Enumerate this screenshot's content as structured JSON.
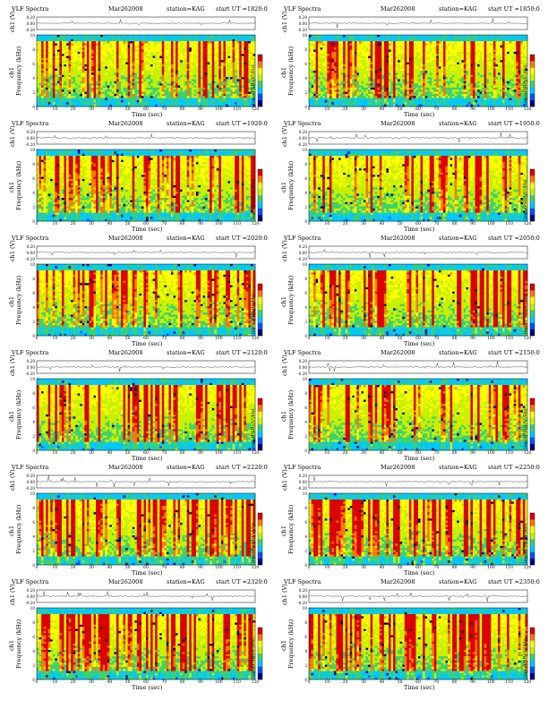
{
  "page": {
    "title_prefix": "VLF Spectra",
    "date": "Mar262008",
    "station": "station=KAG",
    "start_label": "start UT",
    "ch_label": "ch1 (V)",
    "ch_ticks": [
      "0.20",
      "0.00",
      "-0.20"
    ],
    "spec_ylabel": "Frequency (kHz)",
    "spec_ylabel2": "ch1",
    "xlabel": "Time (sec)",
    "cbar_label": "log₁₀(PSD)(V²/Hz)"
  },
  "chart_data": [
    {
      "type": "heatmap",
      "title": "VLF Spectra   Mar262008   station=KAG   start UT =1820:0",
      "ut": "=1820:0",
      "xlabel": "Time (sec)",
      "ylabel": "Frequency (kHz)",
      "xlim": [
        0,
        120
      ],
      "ylim": [
        0,
        10
      ],
      "xticks": [
        "0",
        "10",
        "20",
        "30",
        "40",
        "50",
        "60",
        "70",
        "80",
        "90",
        "100",
        "110",
        "120"
      ],
      "yticks": [
        "0",
        "2",
        "4",
        "6",
        "8",
        "10"
      ],
      "activity": 0.35,
      "seed": 11,
      "colors": [
        "#000080",
        "#0050ff",
        "#00c8ff",
        "#3cd26e",
        "#c8f000",
        "#ffff00",
        "#ff7800",
        "#dc0000"
      ]
    },
    {
      "type": "heatmap",
      "title": "VLF Spectra   Mar262008   station=KAG   start UT =1850:0",
      "ut": "=1850:0",
      "xlabel": "Time (sec)",
      "ylabel": "Frequency (kHz)",
      "xlim": [
        0,
        120
      ],
      "ylim": [
        0,
        10
      ],
      "xticks": [
        "0",
        "10",
        "20",
        "30",
        "40",
        "50",
        "60",
        "70",
        "80",
        "90",
        "100",
        "110",
        "120"
      ],
      "yticks": [
        "0",
        "2",
        "4",
        "6",
        "8",
        "10"
      ],
      "activity": 0.35,
      "seed": 23,
      "colors": [
        "#000080",
        "#0050ff",
        "#00c8ff",
        "#3cd26e",
        "#c8f000",
        "#ffff00",
        "#ff7800",
        "#dc0000"
      ]
    },
    {
      "type": "heatmap",
      "title": "VLF Spectra   Mar262008   station=KAG   start UT =1920:0",
      "ut": "=1920:0",
      "xlabel": "Time (sec)",
      "ylabel": "Frequency (kHz)",
      "xlim": [
        0,
        120
      ],
      "ylim": [
        0,
        10
      ],
      "xticks": [
        "0",
        "10",
        "20",
        "30",
        "40",
        "50",
        "60",
        "70",
        "80",
        "90",
        "100",
        "110",
        "120"
      ],
      "yticks": [
        "0",
        "2",
        "4",
        "6",
        "8",
        "10"
      ],
      "activity": 0.4,
      "seed": 37,
      "colors": [
        "#000080",
        "#0050ff",
        "#00c8ff",
        "#3cd26e",
        "#c8f000",
        "#ffff00",
        "#ff7800",
        "#dc0000"
      ]
    },
    {
      "type": "heatmap",
      "title": "VLF Spectra   Mar262008   station=KAG   start UT =1950:0",
      "ut": "=1950:0",
      "xlabel": "Time (sec)",
      "ylabel": "Frequency (kHz)",
      "xlim": [
        0,
        120
      ],
      "ylim": [
        0,
        10
      ],
      "xticks": [
        "0",
        "10",
        "20",
        "30",
        "40",
        "50",
        "60",
        "70",
        "80",
        "90",
        "100",
        "110",
        "120"
      ],
      "yticks": [
        "0",
        "2",
        "4",
        "6",
        "8",
        "10"
      ],
      "activity": 0.4,
      "seed": 41,
      "colors": [
        "#000080",
        "#0050ff",
        "#00c8ff",
        "#3cd26e",
        "#c8f000",
        "#ffff00",
        "#ff7800",
        "#dc0000"
      ]
    },
    {
      "type": "heatmap",
      "title": "VLF Spectra   Mar262008   station=KAG   start UT =2020:0",
      "ut": "=2020:0",
      "xlabel": "Time (sec)",
      "ylabel": "Frequency (kHz)",
      "xlim": [
        0,
        120
      ],
      "ylim": [
        0,
        10
      ],
      "xticks": [
        "0",
        "10",
        "20",
        "30",
        "40",
        "50",
        "60",
        "70",
        "80",
        "90",
        "100",
        "110",
        "120"
      ],
      "yticks": [
        "0",
        "2",
        "4",
        "6",
        "8",
        "10"
      ],
      "activity": 0.5,
      "seed": 53,
      "colors": [
        "#000080",
        "#0050ff",
        "#00c8ff",
        "#3cd26e",
        "#c8f000",
        "#ffff00",
        "#ff7800",
        "#dc0000"
      ]
    },
    {
      "type": "heatmap",
      "title": "VLF Spectra   Mar262008   station=KAG   start UT =2050:0",
      "ut": "=2050:0",
      "xlabel": "Time (sec)",
      "ylabel": "Frequency (kHz)",
      "xlim": [
        0,
        120
      ],
      "ylim": [
        0,
        10
      ],
      "xticks": [
        "0",
        "10",
        "20",
        "30",
        "40",
        "50",
        "60",
        "70",
        "80",
        "90",
        "100",
        "110",
        "120"
      ],
      "yticks": [
        "0",
        "2",
        "4",
        "6",
        "8",
        "10"
      ],
      "activity": 0.5,
      "seed": 67,
      "colors": [
        "#000080",
        "#0050ff",
        "#00c8ff",
        "#3cd26e",
        "#c8f000",
        "#ffff00",
        "#ff7800",
        "#dc0000"
      ]
    },
    {
      "type": "heatmap",
      "title": "VLF Spectra   Mar262008   station=KAG   start UT =2120:0",
      "ut": "=2120:0",
      "xlabel": "Time (sec)",
      "ylabel": "Frequency (kHz)",
      "xlim": [
        0,
        120
      ],
      "ylim": [
        0,
        10
      ],
      "xticks": [
        "0",
        "10",
        "20",
        "30",
        "40",
        "50",
        "60",
        "70",
        "80",
        "90",
        "100",
        "110",
        "120"
      ],
      "yticks": [
        "0",
        "2",
        "4",
        "6",
        "8",
        "10"
      ],
      "activity": 0.6,
      "seed": 71,
      "colors": [
        "#000080",
        "#0050ff",
        "#00c8ff",
        "#3cd26e",
        "#c8f000",
        "#ffff00",
        "#ff7800",
        "#dc0000"
      ]
    },
    {
      "type": "heatmap",
      "title": "VLF Spectra   Mar262008   station=KAG   start UT =2150:0",
      "ut": "=2150:0",
      "xlabel": "Time (sec)",
      "ylabel": "Frequency (kHz)",
      "xlim": [
        0,
        120
      ],
      "ylim": [
        0,
        10
      ],
      "xticks": [
        "0",
        "10",
        "20",
        "30",
        "40",
        "50",
        "60",
        "70",
        "80",
        "90",
        "100",
        "110",
        "120"
      ],
      "yticks": [
        "0",
        "2",
        "4",
        "6",
        "8",
        "10"
      ],
      "activity": 0.6,
      "seed": 83,
      "colors": [
        "#000080",
        "#0050ff",
        "#00c8ff",
        "#3cd26e",
        "#c8f000",
        "#ffff00",
        "#ff7800",
        "#dc0000"
      ]
    },
    {
      "type": "heatmap",
      "title": "VLF Spectra   Mar262008   station=KAG   start UT =2220:0",
      "ut": "=2220:0",
      "xlabel": "Time (sec)",
      "ylabel": "Frequency (kHz)",
      "xlim": [
        0,
        120
      ],
      "ylim": [
        0,
        10
      ],
      "xticks": [
        "0",
        "10",
        "20",
        "30",
        "40",
        "50",
        "60",
        "70",
        "80",
        "90",
        "100",
        "110",
        "120"
      ],
      "yticks": [
        "0",
        "2",
        "4",
        "6",
        "8",
        "10"
      ],
      "activity": 0.8,
      "seed": 97,
      "colors": [
        "#000080",
        "#0050ff",
        "#00c8ff",
        "#3cd26e",
        "#c8f000",
        "#ffff00",
        "#ff7800",
        "#dc0000"
      ]
    },
    {
      "type": "heatmap",
      "title": "VLF Spectra   Mar262008   station=KAG   start UT =2250:0",
      "ut": "=2250:0",
      "xlabel": "Time (sec)",
      "ylabel": "Frequency (kHz)",
      "xlim": [
        0,
        120
      ],
      "ylim": [
        0,
        10
      ],
      "xticks": [
        "0",
        "10",
        "20",
        "30",
        "40",
        "50",
        "60",
        "70",
        "80",
        "90",
        "100",
        "110",
        "120"
      ],
      "yticks": [
        "0",
        "2",
        "4",
        "6",
        "8",
        "10"
      ],
      "activity": 0.8,
      "seed": 101,
      "colors": [
        "#000080",
        "#0050ff",
        "#00c8ff",
        "#3cd26e",
        "#c8f000",
        "#ffff00",
        "#ff7800",
        "#dc0000"
      ]
    },
    {
      "type": "heatmap",
      "title": "VLF Spectra   Mar262008   station=KAG   start UT =2320:0",
      "ut": "=2320:0",
      "xlabel": "Time (sec)",
      "ylabel": "Frequency (kHz)",
      "xlim": [
        0,
        120
      ],
      "ylim": [
        0,
        10
      ],
      "xticks": [
        "0",
        "10",
        "20",
        "30",
        "40",
        "50",
        "60",
        "70",
        "80",
        "90",
        "100",
        "110",
        "120"
      ],
      "yticks": [
        "0",
        "2",
        "4",
        "6",
        "8",
        "10"
      ],
      "activity": 0.85,
      "seed": 113,
      "colors": [
        "#000080",
        "#0050ff",
        "#00c8ff",
        "#3cd26e",
        "#c8f000",
        "#ffff00",
        "#ff7800",
        "#dc0000"
      ]
    },
    {
      "type": "heatmap",
      "title": "VLF Spectra   Mar262008   station=KAG   start UT =2350:0",
      "ut": "=2350:0",
      "xlabel": "Time (sec)",
      "ylabel": "Frequency (kHz)",
      "xlim": [
        0,
        120
      ],
      "ylim": [
        0,
        10
      ],
      "xticks": [
        "0",
        "10",
        "20",
        "30",
        "40",
        "50",
        "60",
        "70",
        "80",
        "90",
        "100",
        "110",
        "120"
      ],
      "yticks": [
        "0",
        "2",
        "4",
        "6",
        "8",
        "10"
      ],
      "activity": 0.85,
      "seed": 127,
      "colors": [
        "#000080",
        "#0050ff",
        "#00c8ff",
        "#3cd26e",
        "#c8f000",
        "#ffff00",
        "#ff7800",
        "#dc0000"
      ]
    }
  ]
}
